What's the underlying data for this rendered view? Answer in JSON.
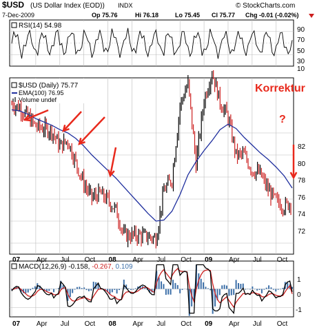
{
  "header": {
    "symbol": "$USD",
    "name": "(US Dollar Index (EOD))",
    "exchange": "INDX",
    "brand": "© StockCharts.com",
    "date": "7-Dec-2009",
    "op": "Op 75.76",
    "hi": "Hi 76.18",
    "lo": "Lo 75.45",
    "cl": "Cl 75.77",
    "chg": "Chg -0.01 (-0.02%)"
  },
  "rsi": {
    "label": "RSI(14) 54.98",
    "ticks": [
      "90",
      "70",
      "50",
      "30",
      "10"
    ]
  },
  "price": {
    "legend_main": "$USD (Daily) 75.77",
    "legend_ema": "EMA(100) 76.95",
    "legend_vol": "Volume undef",
    "annotation_title": "Korrektur",
    "annotation_q": "?",
    "yticks": [
      "82",
      "80",
      "78",
      "76",
      "74",
      "72"
    ]
  },
  "macd": {
    "label_a": "MACD(12,26,9) -0.158,",
    "label_b": "-0.267,",
    "label_c": "0.109",
    "ticks": [
      "1",
      "0",
      "-1"
    ]
  },
  "xaxis": {
    "labels": [
      "07",
      "Apr",
      "Jul",
      "Oct",
      "08",
      "Apr",
      "Jul",
      "Oct",
      "09",
      "Apr",
      "Jul",
      "Oct"
    ]
  },
  "colors": {
    "annotation_red": "#e8291c",
    "ema_blue": "#1f2f9e",
    "macd_blue": "#3c6fa8",
    "signal_red": "#cc1f1f",
    "price_up": "#000000",
    "price_down": "#cc1f1f"
  },
  "chart_data": {
    "type": "line",
    "title": "$USD (US Dollar Index (EOD))",
    "x": [
      "2007-01",
      "2007-02",
      "2007-03",
      "2007-04",
      "2007-05",
      "2007-06",
      "2007-07",
      "2007-08",
      "2007-09",
      "2007-10",
      "2007-11",
      "2007-12",
      "2008-01",
      "2008-02",
      "2008-03",
      "2008-04",
      "2008-05",
      "2008-06",
      "2008-07",
      "2008-08",
      "2008-09",
      "2008-10",
      "2008-11",
      "2008-12",
      "2009-01",
      "2009-02",
      "2009-03",
      "2009-04",
      "2009-05",
      "2009-06",
      "2009-07",
      "2009-08",
      "2009-09",
      "2009-10",
      "2009-11",
      "2009-12"
    ],
    "series": [
      {
        "name": "$USD (Daily)",
        "values": [
          84.6,
          84.3,
          83.5,
          82.6,
          82.4,
          82.2,
          80.8,
          81.3,
          79.3,
          77.4,
          76.1,
          76.5,
          75.9,
          75.0,
          72.7,
          72.7,
          72.7,
          72.6,
          72.4,
          76.8,
          77.8,
          84.5,
          86.5,
          79.2,
          85.0,
          87.5,
          84.8,
          83.4,
          80.0,
          80.0,
          78.6,
          78.3,
          76.8,
          75.8,
          75.3,
          75.8
        ]
      },
      {
        "name": "EMA(100)",
        "values": [
          84.1,
          84.0,
          83.7,
          83.3,
          83.0,
          82.7,
          82.3,
          82.0,
          81.5,
          80.8,
          80.0,
          79.3,
          78.6,
          77.9,
          77.1,
          76.3,
          75.5,
          74.7,
          74.0,
          74.1,
          74.9,
          76.4,
          78.2,
          79.4,
          80.4,
          81.3,
          82.3,
          82.8,
          82.4,
          81.6,
          80.9,
          80.2,
          79.6,
          78.9,
          78.1,
          77.0
        ]
      }
    ],
    "ylim": [
      71,
      87
    ],
    "rsi": {
      "label": "RSI(14)",
      "last": 54.98,
      "ylim": [
        10,
        90
      ]
    },
    "macd": {
      "label": "MACD(12,26,9)",
      "macd": -0.158,
      "signal": -0.267,
      "histogram": 0.109,
      "ylim": [
        -1.5,
        1.5
      ]
    },
    "legend_placement": "top-left",
    "grid": true
  }
}
